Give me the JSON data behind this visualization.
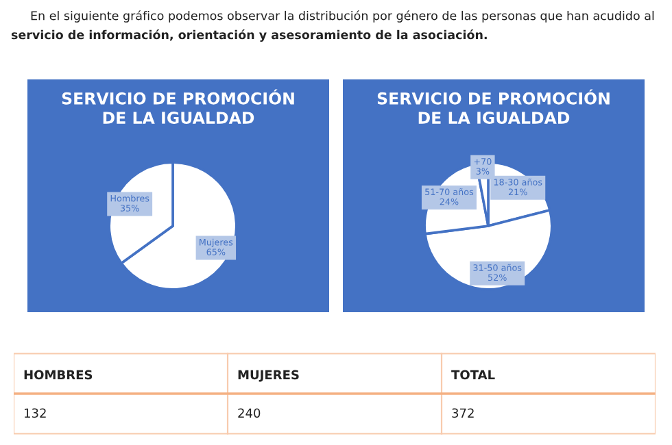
{
  "chart_data": [
    {
      "type": "other",
      "annotations": [
        "En el siguiente gráfico podemos observar la distribución por género de las personas que han acudido al",
        "servicio de información, orientación y asesoramiento de la asociación."
      ]
    },
    {
      "type": "pie",
      "title": "SERVICIO DE PROMOCIÓN\nDE LA IGUALDAD",
      "categories": [
        "Mujeres",
        "Hombres"
      ],
      "values": [
        65,
        35
      ],
      "value_labels": [
        "65%",
        "35%"
      ],
      "colors": [
        "#ffffff",
        "#ffffff"
      ],
      "legend": false
    },
    {
      "type": "pie",
      "title": "SERVICIO DE PROMOCIÓN\nDE LA IGUALDAD",
      "categories": [
        "18-30 años",
        "31-50 años",
        "51-70 años",
        "+70"
      ],
      "values": [
        21,
        52,
        24,
        3
      ],
      "value_labels": [
        "21%",
        "52%",
        "24%",
        "3%"
      ],
      "colors": [
        "#ffffff",
        "#ffffff",
        "#ffffff",
        "#ffffff"
      ],
      "legend": false
    },
    {
      "type": "other",
      "categories": [
        "HOMBRES",
        "MUJERES",
        "TOTAL"
      ],
      "values": [
        132,
        240,
        372
      ],
      "data_labels": true
    }
  ]
}
